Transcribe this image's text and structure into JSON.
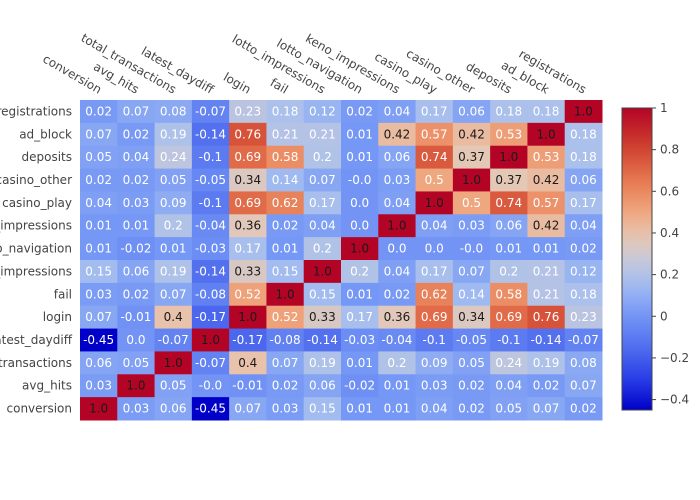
{
  "chart_data": {
    "type": "heatmap",
    "title": "",
    "x_labels": [
      "conversion",
      "avg_hits",
      "total_transactions",
      "latest_daydiff",
      "login",
      "fail",
      "lotto_impressions",
      "lotto_navigation",
      "keno_impressions",
      "casino_play",
      "casino_other",
      "deposits",
      "ad_block",
      "registrations"
    ],
    "y_labels": [
      "registrations",
      "ad_block",
      "deposits",
      "casino_other",
      "casino_play",
      "keno_impressions",
      "lotto_navigation",
      "lotto_impressions",
      "fail",
      "login",
      "latest_daydiff",
      "total_transactions",
      "avg_hits",
      "conversion"
    ],
    "y_labels_display": [
      "registrations",
      "ad_block",
      "deposits",
      "casino_other",
      "casino_play",
      "_impressions",
      "tto_navigation",
      "_impressions",
      "fail",
      "login",
      "latest_daydiff",
      "_transactions",
      "avg_hits",
      "conversion"
    ],
    "matrix": [
      [
        "0.02",
        "0.07",
        "0.08",
        "-0.07",
        "0.23",
        "0.18",
        "0.12",
        "0.02",
        "0.04",
        "0.17",
        "0.06",
        "0.18",
        "0.18",
        "1.0"
      ],
      [
        "0.07",
        "0.02",
        "0.19",
        "-0.14",
        "0.76",
        "0.21",
        "0.21",
        "0.01",
        "0.42",
        "0.57",
        "0.42",
        "0.53",
        "1.0",
        "0.18"
      ],
      [
        "0.05",
        "0.04",
        "0.24",
        "-0.1",
        "0.69",
        "0.58",
        "0.2",
        "0.01",
        "0.06",
        "0.74",
        "0.37",
        "1.0",
        "0.53",
        "0.18"
      ],
      [
        "0.02",
        "0.02",
        "0.05",
        "-0.05",
        "0.34",
        "0.14",
        "0.07",
        "-0.0",
        "0.03",
        "0.5",
        "1.0",
        "0.37",
        "0.42",
        "0.06"
      ],
      [
        "0.04",
        "0.03",
        "0.09",
        "-0.1",
        "0.69",
        "0.62",
        "0.17",
        "0.0",
        "0.04",
        "1.0",
        "0.5",
        "0.74",
        "0.57",
        "0.17"
      ],
      [
        "0.01",
        "0.01",
        "0.2",
        "-0.04",
        "0.36",
        "0.02",
        "0.04",
        "0.0",
        "1.0",
        "0.04",
        "0.03",
        "0.06",
        "0.42",
        "0.04"
      ],
      [
        "0.01",
        "-0.02",
        "0.01",
        "-0.03",
        "0.17",
        "0.01",
        "0.2",
        "1.0",
        "0.0",
        "0.0",
        "-0.0",
        "0.01",
        "0.01",
        "0.02"
      ],
      [
        "0.15",
        "0.06",
        "0.19",
        "-0.14",
        "0.33",
        "0.15",
        "1.0",
        "0.2",
        "0.04",
        "0.17",
        "0.07",
        "0.2",
        "0.21",
        "0.12"
      ],
      [
        "0.03",
        "0.02",
        "0.07",
        "-0.08",
        "0.52",
        "1.0",
        "0.15",
        "0.01",
        "0.02",
        "0.62",
        "0.14",
        "0.58",
        "0.21",
        "0.18"
      ],
      [
        "0.07",
        "-0.01",
        "0.4",
        "-0.17",
        "1.0",
        "0.52",
        "0.33",
        "0.17",
        "0.36",
        "0.69",
        "0.34",
        "0.69",
        "0.76",
        "0.23"
      ],
      [
        "-0.45",
        "0.0",
        "-0.07",
        "1.0",
        "-0.17",
        "-0.08",
        "-0.14",
        "-0.03",
        "-0.04",
        "-0.1",
        "-0.05",
        "-0.1",
        "-0.14",
        "-0.07"
      ],
      [
        "0.06",
        "0.05",
        "1.0",
        "-0.07",
        "0.4",
        "0.07",
        "0.19",
        "0.01",
        "0.2",
        "0.09",
        "0.05",
        "0.24",
        "0.19",
        "0.08"
      ],
      [
        "0.03",
        "1.0",
        "0.05",
        "-0.0",
        "-0.01",
        "0.02",
        "0.06",
        "-0.02",
        "0.01",
        "0.03",
        "0.02",
        "0.04",
        "0.02",
        "0.07"
      ],
      [
        "1.0",
        "0.03",
        "0.06",
        "-0.45",
        "0.07",
        "0.03",
        "0.15",
        "0.01",
        "0.01",
        "0.04",
        "0.02",
        "0.05",
        "0.07",
        "0.02"
      ]
    ],
    "zmin": -0.45,
    "zmax": 1.0,
    "colorscale": "coolwarm",
    "colorbar": {
      "tick_values": [
        -0.4,
        -0.2,
        0,
        0.2,
        0.4,
        0.6,
        0.8,
        1
      ],
      "tick_labels": [
        "−0.4",
        "−0.2",
        "0",
        "0.2",
        "0.4",
        "0.6",
        "0.8",
        "1"
      ],
      "placement": "right"
    },
    "xaxis_side": "top",
    "xaxis_tickangle": 30,
    "grid": false
  }
}
